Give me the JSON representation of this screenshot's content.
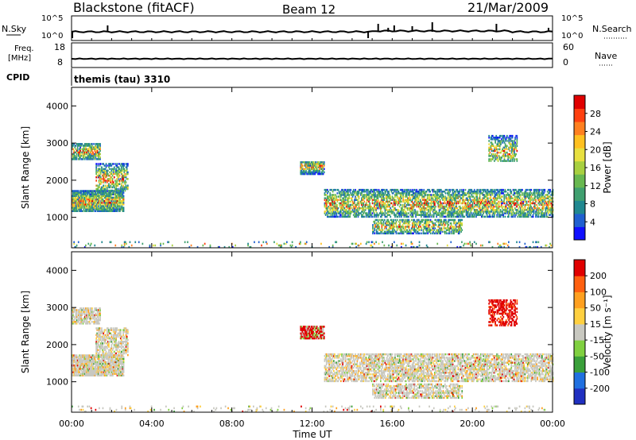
{
  "header": {
    "station": "Blackstone (fitACF)",
    "beam": "Beam 12",
    "date": "21/Mar/2009"
  },
  "status_panels": {
    "nsky_label": "N.Sky",
    "nsky_ticks": [
      "10^5",
      "10^0"
    ],
    "nsearch_label": "N.Search",
    "nsearch_ticks": [
      "10^5",
      "10^0"
    ],
    "freq_label": "Freq.",
    "freq_unit": "[MHz]",
    "freq_ticks": [
      "18",
      "8"
    ],
    "nave_label": "Nave",
    "nave_ticks": [
      "60",
      "0"
    ],
    "cpid_label": "CPID",
    "cpid_value": "themis (tau) 3310"
  },
  "chart_data": [
    {
      "type": "heatmap",
      "name": "power",
      "ylabel": "Slant Range [km]",
      "y_ticks": [
        "1000",
        "2000",
        "3000",
        "4000"
      ],
      "ylim": [
        180,
        4500
      ],
      "xlim": [
        0,
        24
      ],
      "colorbar_label": "Power [dB]",
      "colorbar_ticks": [
        "28",
        "24",
        "20",
        "16",
        "12",
        "8",
        "4"
      ],
      "colors": [
        "#1010ff",
        "#2060d0",
        "#208890",
        "#40a070",
        "#68b850",
        "#a8d040",
        "#e8e040",
        "#ffc020",
        "#ff8020",
        "#ff4010",
        "#e00000"
      ]
    },
    {
      "type": "heatmap",
      "name": "velocity",
      "ylabel": "Slant Range [km]",
      "y_ticks": [
        "1000",
        "2000",
        "3000",
        "4000"
      ],
      "ylim": [
        180,
        4500
      ],
      "xlim": [
        0,
        24
      ],
      "colorbar_label": "Velocity [m s⁻¹]",
      "colorbar_ticks": [
        "200",
        "100",
        "50",
        "15",
        "-15",
        "-50",
        "-100",
        "-200"
      ],
      "colors": [
        "#2030c0",
        "#2070e0",
        "#3aa03a",
        "#80d040",
        "#c8c8c0",
        "#ffd040",
        "#ffa020",
        "#ff6010",
        "#e00000"
      ]
    }
  ],
  "x_ticks": [
    "00:00",
    "04:00",
    "08:00",
    "12:00",
    "16:00",
    "20:00",
    "00:00"
  ],
  "xlabel": "Time UT"
}
